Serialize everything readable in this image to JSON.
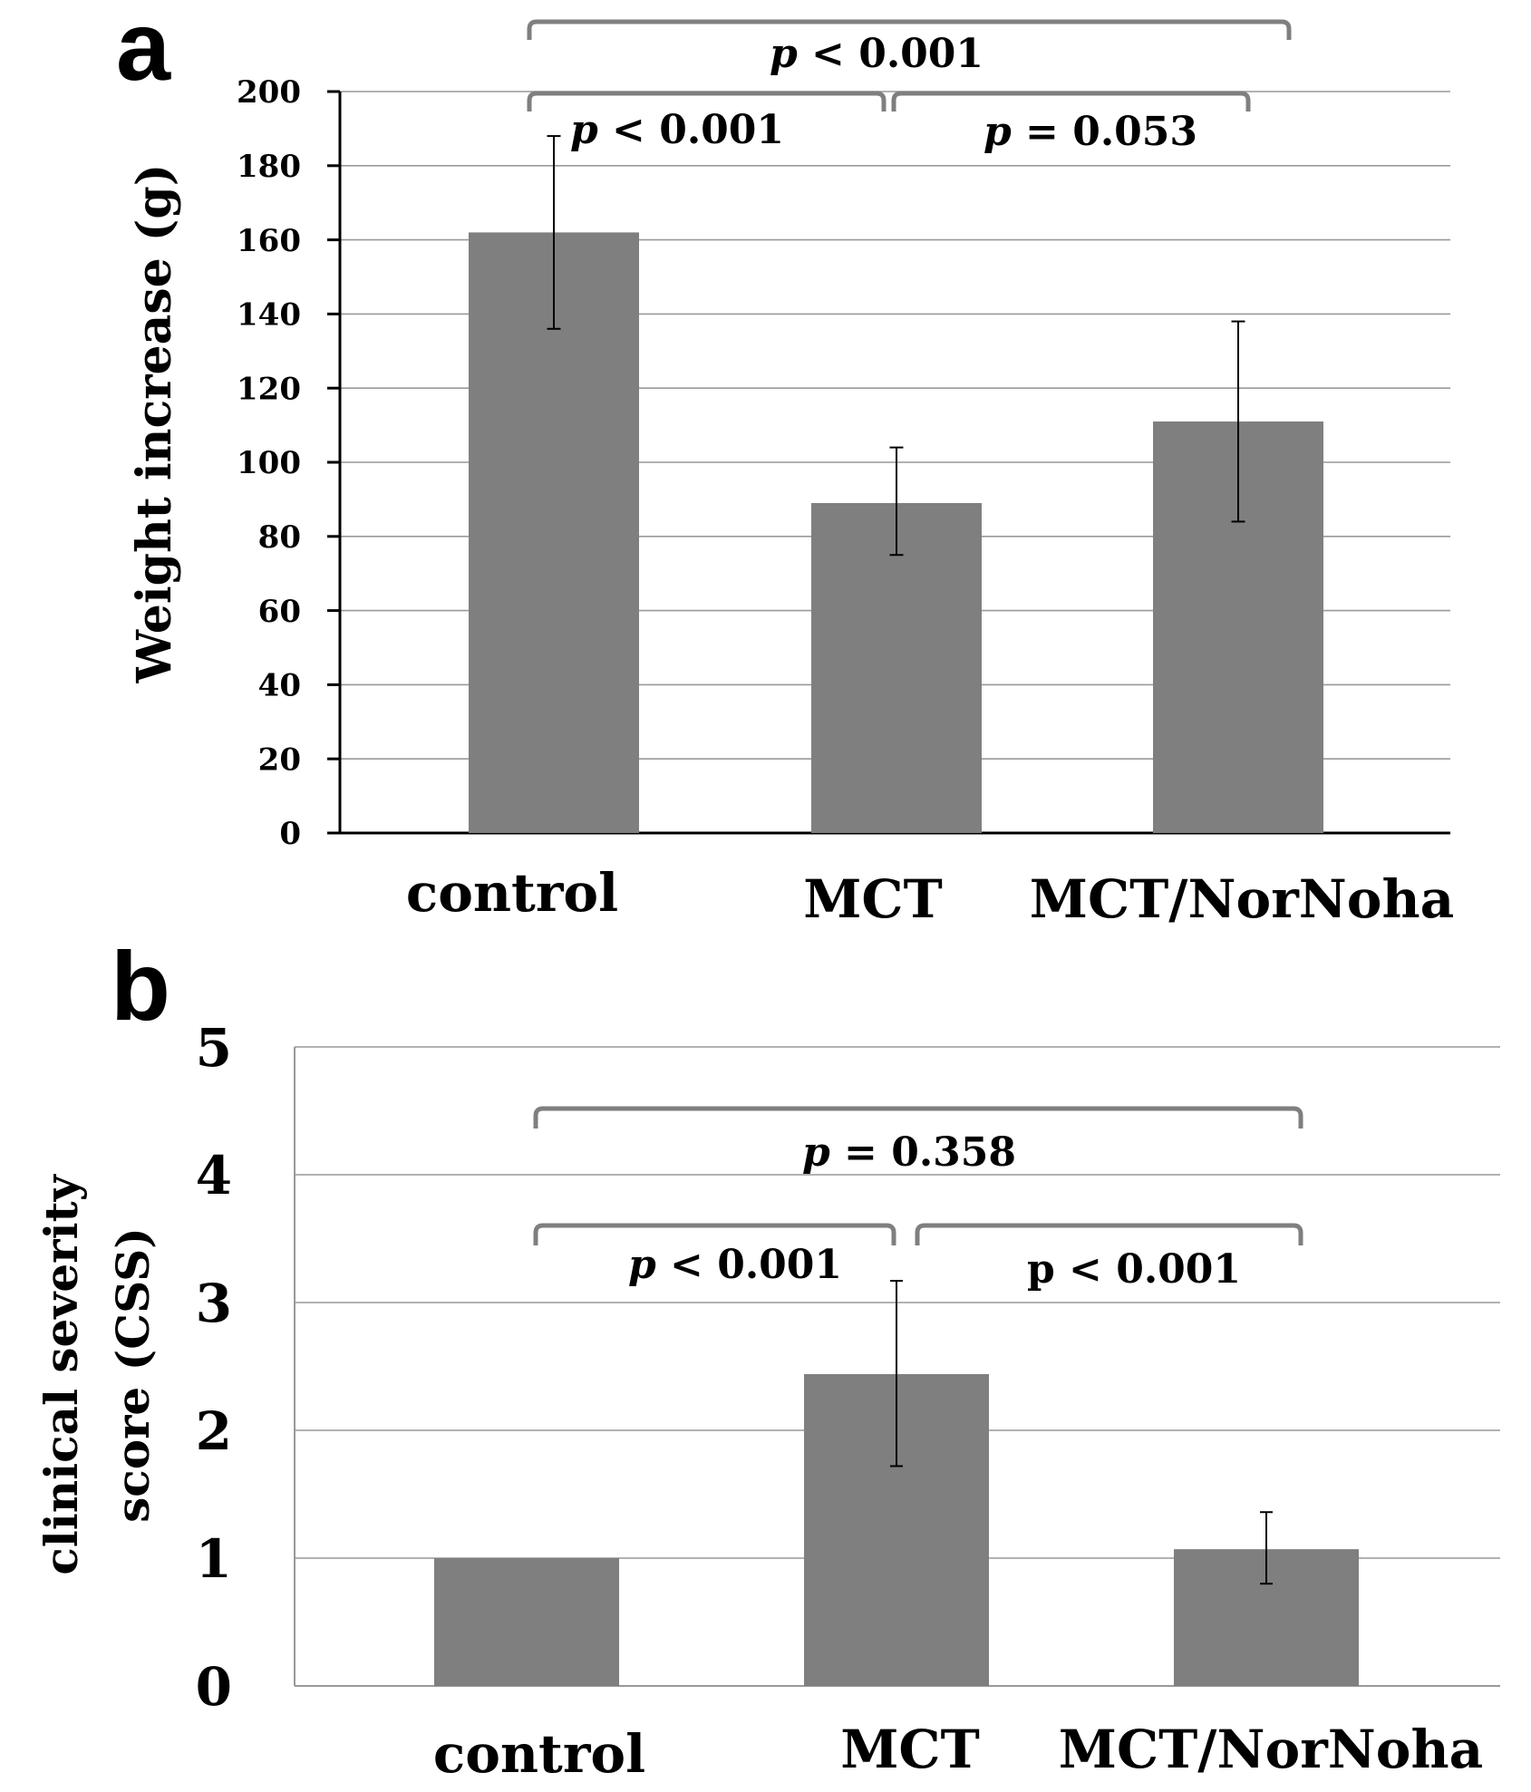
{
  "bar_color": "#7f7f7f",
  "chart_data": [
    {
      "panel_label": "a",
      "type": "bar",
      "categories": [
        "control",
        "MCT",
        "MCT/NorNoha"
      ],
      "values": [
        162,
        89,
        111
      ],
      "error": [
        [
          136,
          188
        ],
        [
          75,
          104
        ],
        [
          84,
          138
        ]
      ],
      "ylabel": "Weight increase (g)",
      "xlabel": "",
      "ylim": [
        0,
        200
      ],
      "yticks": [
        "0",
        "20",
        "40",
        "60",
        "80",
        "100",
        "120",
        "140",
        "160",
        "180",
        "200"
      ],
      "grid": true,
      "comparisons": [
        {
          "from": "control",
          "to": "MCT",
          "label": "p < 0.001",
          "p_letter": "p",
          "p_rest": " < 0.001"
        },
        {
          "from": "MCT",
          "to": "MCT/NorNoha",
          "label": "p = 0.053",
          "p_letter": "p",
          "p_rest": " = 0.053"
        },
        {
          "from": "control",
          "to": "MCT/NorNoha",
          "label": "p < 0.001",
          "p_letter": "p",
          "p_rest": " < 0.001"
        }
      ]
    },
    {
      "panel_label": "b",
      "type": "bar",
      "categories": [
        "control",
        "MCT",
        "MCT/NorNoha"
      ],
      "values": [
        1.0,
        2.44,
        1.07
      ],
      "error": [
        null,
        [
          1.72,
          3.17
        ],
        [
          0.8,
          1.36
        ]
      ],
      "ylabel_line1": "clinical severity",
      "ylabel_line2": "score (CSS)",
      "xlabel": "",
      "ylim": [
        0,
        5
      ],
      "yticks": [
        "0",
        "1",
        "2",
        "3",
        "4",
        "5"
      ],
      "grid": true,
      "comparisons": [
        {
          "from": "control",
          "to": "MCT/NorNoha",
          "label": "p = 0.358",
          "p_letter": "p",
          "p_rest": " = 0.358"
        },
        {
          "from": "control",
          "to": "MCT",
          "label": "p < 0.001",
          "p_letter": "p",
          "p_rest": " < 0.001"
        },
        {
          "from": "MCT",
          "to": "MCT/NorNoha",
          "label": "p < 0.001",
          "p_letter": "p",
          "p_rest": " < 0.001"
        }
      ]
    }
  ]
}
